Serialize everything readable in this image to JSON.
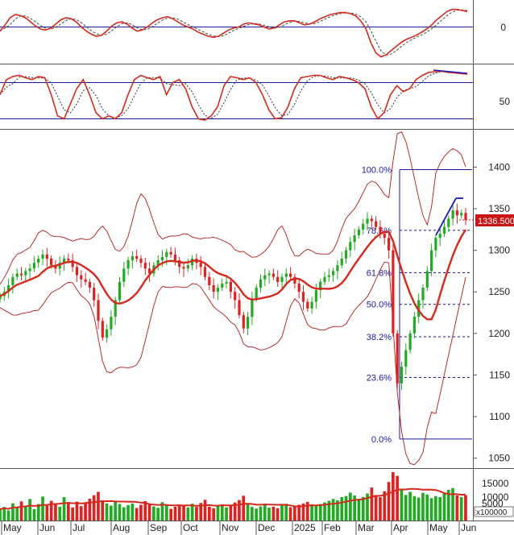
{
  "colors": {
    "up": "#22aa22",
    "down": "#dd2222",
    "ma": "#d42a1e",
    "band": "#b01818",
    "oscillator_signal": "#333333",
    "trend_line": "#1a1ab8",
    "level_line": "#1a1a99",
    "fib_text": "#1a1aa0",
    "price_tag_bg": "#c81414",
    "price_tag_text": "#ffffff"
  },
  "chart_data": [
    {
      "panel": "oscillator-1",
      "type": "line",
      "reference_level": 0,
      "y_ticks": [
        "0"
      ],
      "series": [
        {
          "values": [
            -4,
            2,
            9,
            12,
            11,
            9,
            5,
            1,
            -2,
            -3,
            -1,
            3,
            7,
            9,
            8,
            5,
            0,
            -4,
            -7,
            -9,
            -8,
            -4,
            1,
            4,
            5,
            3,
            -1,
            -4,
            -3,
            0,
            4,
            7,
            9,
            10,
            8,
            5,
            2,
            0,
            -2,
            -5,
            -7,
            -9,
            -10,
            -9,
            -6,
            -3,
            -1,
            0,
            3,
            4,
            3,
            2,
            0,
            -2,
            -1,
            2,
            5,
            6,
            6,
            4,
            2,
            3,
            5,
            8,
            10,
            12,
            13,
            14,
            14,
            13,
            11,
            6,
            -1,
            -15,
            -25,
            -29,
            -27,
            -23,
            -19,
            -15,
            -12,
            -10,
            -8,
            -5,
            -2,
            2,
            7,
            11,
            15,
            17,
            17,
            16,
            15
          ]
        }
      ]
    },
    {
      "panel": "oscillator-2",
      "type": "line",
      "y_ticks": [
        "50"
      ],
      "reference_levels": [
        80,
        20
      ],
      "series": [
        {
          "values": [
            60,
            85,
            90,
            92,
            88,
            85,
            90,
            88,
            60,
            25,
            20,
            45,
            70,
            85,
            60,
            30,
            20,
            25,
            20,
            30,
            60,
            85,
            92,
            88,
            85,
            90,
            60,
            80,
            85,
            70,
            40,
            20,
            18,
            25,
            40,
            75,
            90,
            88,
            85,
            88,
            80,
            60,
            35,
            20,
            22,
            40,
            70,
            88,
            90,
            92,
            92,
            88,
            85,
            90,
            88,
            85,
            80,
            70,
            40,
            20,
            30,
            60,
            75,
            65,
            70,
            85,
            92,
            97,
            98,
            99,
            97,
            96,
            95,
            94
          ]
        }
      ]
    },
    {
      "panel": "price",
      "type": "candlestick",
      "ylim": [
        1038,
        1445
      ],
      "y_ticks": [
        "1400",
        "1350",
        "1300",
        "1250",
        "1200",
        "1150",
        "1100",
        "1050"
      ],
      "x_labels": [
        "May",
        "Jun",
        "Jul",
        "Aug",
        "Sep",
        "Oct",
        "Nov",
        "Dec",
        "2025",
        "Feb",
        "Mar",
        "Apr",
        "May",
        "Jun"
      ],
      "last_price": "1336.500",
      "fibonacci": [
        {
          "label": "100.0%",
          "value": 1397
        },
        {
          "label": "78.6%",
          "value": 1324
        },
        {
          "label": "61.8%",
          "value": 1273
        },
        {
          "label": "50.0%",
          "value": 1235
        },
        {
          "label": "38.2%",
          "value": 1196
        },
        {
          "label": "23.6%",
          "value": 1147
        },
        {
          "label": "0.0%",
          "value": 1073
        }
      ],
      "close": [
        1245,
        1250,
        1258,
        1268,
        1272,
        1270,
        1275,
        1278,
        1285,
        1290,
        1295,
        1290,
        1282,
        1278,
        1285,
        1290,
        1288,
        1280,
        1270,
        1265,
        1262,
        1255,
        1240,
        1215,
        1195,
        1205,
        1220,
        1240,
        1262,
        1278,
        1288,
        1293,
        1290,
        1285,
        1278,
        1272,
        1282,
        1288,
        1292,
        1298,
        1295,
        1288,
        1280,
        1278,
        1282,
        1290,
        1285,
        1280,
        1268,
        1258,
        1250,
        1255,
        1260,
        1262,
        1250,
        1240,
        1222,
        1206,
        1220,
        1242,
        1255,
        1265,
        1270,
        1272,
        1268,
        1262,
        1268,
        1272,
        1268,
        1260,
        1250,
        1238,
        1230,
        1238,
        1252,
        1262,
        1268,
        1270,
        1275,
        1282,
        1290,
        1300,
        1310,
        1318,
        1325,
        1332,
        1338,
        1335,
        1328,
        1320,
        1315,
        1300,
        1200,
        1140,
        1160,
        1180,
        1200,
        1220,
        1240,
        1255,
        1275,
        1300,
        1315,
        1320,
        1328,
        1338,
        1348,
        1342,
        1345,
        1336.5
      ]
    },
    {
      "panel": "volume",
      "type": "bar",
      "y_ticks": [
        "15000",
        "10000",
        "5000"
      ],
      "unit_label": "x100000",
      "values": [
        4200,
        5100,
        3800,
        6500,
        4800,
        7200,
        5500,
        8100,
        4300,
        6200,
        9000,
        5800,
        7400,
        6000,
        5200,
        8800,
        6600,
        4900,
        7100,
        5400,
        6800,
        8200,
        9500,
        10800,
        7600,
        6400,
        5600,
        7000,
        6200,
        5000,
        5800,
        6400,
        4700,
        5900,
        7300,
        6100,
        5300,
        4800,
        6900,
        5700,
        4400,
        5200,
        6000,
        5500,
        4900,
        6300,
        5100,
        6600,
        7800,
        5200,
        4600,
        5400,
        6100,
        4900,
        5600,
        6800,
        7700,
        9300,
        6200,
        5100,
        4500,
        5300,
        5900,
        4800,
        5200,
        4600,
        5800,
        6300,
        5000,
        5400,
        5900,
        6400,
        7000,
        6100,
        5500,
        6200,
        6800,
        7400,
        8100,
        7600,
        8800,
        9200,
        10500,
        9400,
        8200,
        8900,
        10200,
        12400,
        9600,
        8800,
        11000,
        14500,
        18200,
        16800,
        12000,
        9600,
        10800,
        9200,
        8600,
        10400,
        9800,
        8400,
        9200,
        8800,
        10100,
        11600,
        12200,
        9400,
        8800,
        9500
      ]
    }
  ]
}
